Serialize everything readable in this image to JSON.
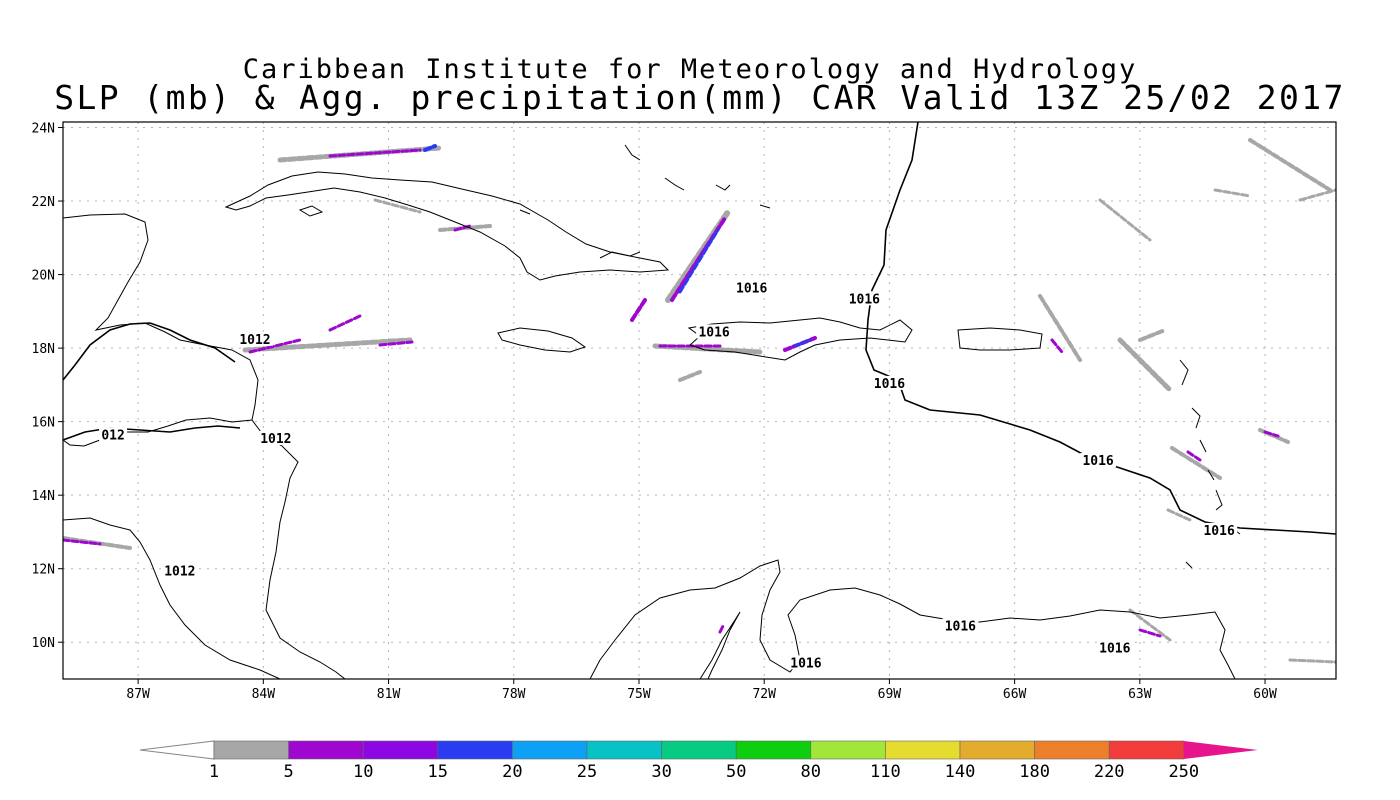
{
  "title": {
    "line1": "Caribbean Institute for Meteorology and Hydrology",
    "line2": "SLP (mb) & Agg. precipitation(mm) CAR Valid 13Z 25/02 2017"
  },
  "axes": {
    "lon_ticks": [
      "87W",
      "84W",
      "81W",
      "78W",
      "75W",
      "72W",
      "69W",
      "66W",
      "63W",
      "60W"
    ],
    "lat_ticks": [
      "24N",
      "22N",
      "20N",
      "18N",
      "16N",
      "14N",
      "12N",
      "10N"
    ]
  },
  "isobar_labels": [
    {
      "text": "1012",
      "lon": -84.2,
      "lat": 18.2
    },
    {
      "text": "012",
      "lon": -87.6,
      "lat": 15.6
    },
    {
      "text": "1012",
      "lon": -83.7,
      "lat": 15.5
    },
    {
      "text": "1012",
      "lon": -86.0,
      "lat": 11.9
    },
    {
      "text": "1016",
      "lon": -72.3,
      "lat": 19.6
    },
    {
      "text": "1016",
      "lon": -69.6,
      "lat": 19.3
    },
    {
      "text": "1016",
      "lon": -73.2,
      "lat": 18.4
    },
    {
      "text": "1016",
      "lon": -69.0,
      "lat": 17.0
    },
    {
      "text": "1016",
      "lon": -64.0,
      "lat": 14.9
    },
    {
      "text": "1016",
      "lon": -61.1,
      "lat": 13.0
    },
    {
      "text": "1016",
      "lon": -67.3,
      "lat": 10.4
    },
    {
      "text": "1016",
      "lon": -63.6,
      "lat": 9.8
    },
    {
      "text": "1016",
      "lon": -71.0,
      "lat": 9.4
    }
  ],
  "colorbar": {
    "labels": [
      "1",
      "5",
      "10",
      "15",
      "20",
      "25",
      "30",
      "50",
      "80",
      "110",
      "140",
      "180",
      "220",
      "250"
    ],
    "colors": [
      "#a7a7a7",
      "#9f06d0",
      "#8c08e3",
      "#2a3cf2",
      "#0ea0f5",
      "#07c3c6",
      "#07cb82",
      "#0ece10",
      "#a2e63a",
      "#e6dc30",
      "#e3ac2c",
      "#ed7f2a",
      "#f23c3c",
      "#e6158b"
    ]
  }
}
